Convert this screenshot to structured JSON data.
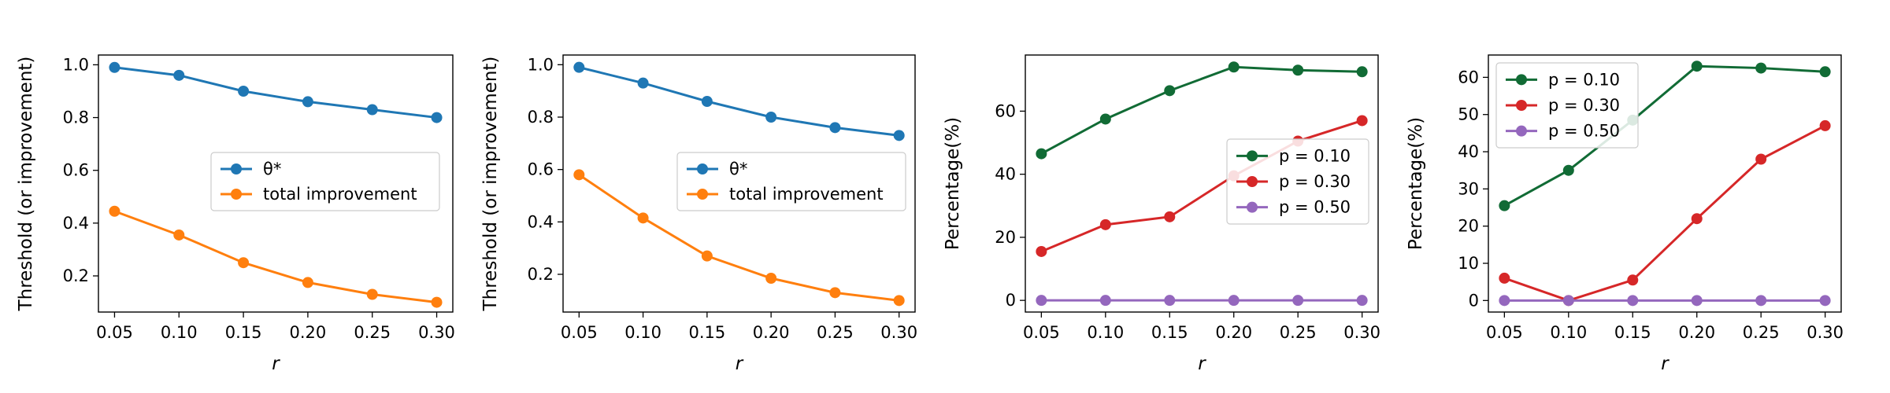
{
  "chart_data": [
    {
      "type": "line",
      "x": [
        0.05,
        0.1,
        0.15,
        0.2,
        0.25,
        0.3
      ],
      "xticks": [
        "0.05",
        "0.10",
        "0.15",
        "0.20",
        "0.25",
        "0.30"
      ],
      "yticks": [
        "0.2",
        "0.4",
        "0.6",
        "0.8",
        "1.0"
      ],
      "ytick_values": [
        0.2,
        0.4,
        0.6,
        0.8,
        1.0
      ],
      "xlabel": "r",
      "ylabel": "Threshold (or improvement)",
      "xlim": [
        0.0375,
        0.3125
      ],
      "ylim": [
        0.063,
        1.037
      ],
      "legend_position": "center-right",
      "series": [
        {
          "name": "θ*",
          "color": "#1f77b4",
          "values": [
            0.99,
            0.96,
            0.9,
            0.86,
            0.83,
            0.8
          ]
        },
        {
          "name": "total improvement",
          "color": "#ff7f0e",
          "values": [
            0.445,
            0.355,
            0.25,
            0.175,
            0.13,
            0.1
          ]
        }
      ]
    },
    {
      "type": "line",
      "x": [
        0.05,
        0.1,
        0.15,
        0.2,
        0.25,
        0.3
      ],
      "xticks": [
        "0.05",
        "0.10",
        "0.15",
        "0.20",
        "0.25",
        "0.30"
      ],
      "yticks": [
        "0.2",
        "0.4",
        "0.6",
        "0.8",
        "1.0"
      ],
      "ytick_values": [
        0.2,
        0.4,
        0.6,
        0.8,
        1.0
      ],
      "xlabel": "r",
      "ylabel": "Threshold (or improvement)",
      "xlim": [
        0.0375,
        0.3125
      ],
      "ylim": [
        0.056,
        1.037
      ],
      "legend_position": "center-right",
      "series": [
        {
          "name": "θ*",
          "color": "#1f77b4",
          "values": [
            0.99,
            0.93,
            0.86,
            0.8,
            0.76,
            0.73
          ]
        },
        {
          "name": "total improvement",
          "color": "#ff7f0e",
          "values": [
            0.58,
            0.415,
            0.27,
            0.185,
            0.13,
            0.1
          ]
        }
      ]
    },
    {
      "type": "line",
      "x": [
        0.05,
        0.1,
        0.15,
        0.2,
        0.25,
        0.3
      ],
      "xticks": [
        "0.05",
        "0.10",
        "0.15",
        "0.20",
        "0.25",
        "0.30"
      ],
      "yticks": [
        "0",
        "20",
        "40",
        "60"
      ],
      "ytick_values": [
        0,
        20,
        40,
        60
      ],
      "xlabel": "r",
      "ylabel": "Percentage(%)",
      "xlim": [
        0.0375,
        0.3125
      ],
      "ylim": [
        -3.7,
        77.8
      ],
      "legend_position": "center-right",
      "series": [
        {
          "name": "p = 0.10",
          "color": "#116b35",
          "values": [
            46.5,
            57.5,
            66.5,
            74.0,
            73.0,
            72.5
          ]
        },
        {
          "name": "p = 0.30",
          "color": "#d62728",
          "values": [
            15.5,
            24.0,
            26.5,
            39.5,
            50.5,
            57.0
          ]
        },
        {
          "name": "p = 0.50",
          "color": "#9467bd",
          "values": [
            0,
            0,
            0,
            0,
            0,
            0
          ]
        }
      ]
    },
    {
      "type": "line",
      "x": [
        0.05,
        0.1,
        0.15,
        0.2,
        0.25,
        0.3
      ],
      "xticks": [
        "0.05",
        "0.10",
        "0.15",
        "0.20",
        "0.25",
        "0.30"
      ],
      "yticks": [
        "0",
        "10",
        "20",
        "30",
        "40",
        "50",
        "60"
      ],
      "ytick_values": [
        0,
        10,
        20,
        30,
        40,
        50,
        60
      ],
      "xlabel": "r",
      "ylabel": "Percentage(%)",
      "xlim": [
        0.0375,
        0.3125
      ],
      "ylim": [
        -3.1,
        66.0
      ],
      "legend_position": "upper-left",
      "series": [
        {
          "name": "p = 0.10",
          "color": "#116b35",
          "values": [
            25.5,
            35.0,
            48.5,
            63.0,
            62.5,
            61.5
          ]
        },
        {
          "name": "p = 0.30",
          "color": "#d62728",
          "values": [
            6.0,
            0.0,
            5.5,
            22.0,
            38.0,
            47.0
          ]
        },
        {
          "name": "p = 0.50",
          "color": "#9467bd",
          "values": [
            0,
            0,
            0,
            0,
            0,
            0
          ]
        }
      ]
    }
  ]
}
